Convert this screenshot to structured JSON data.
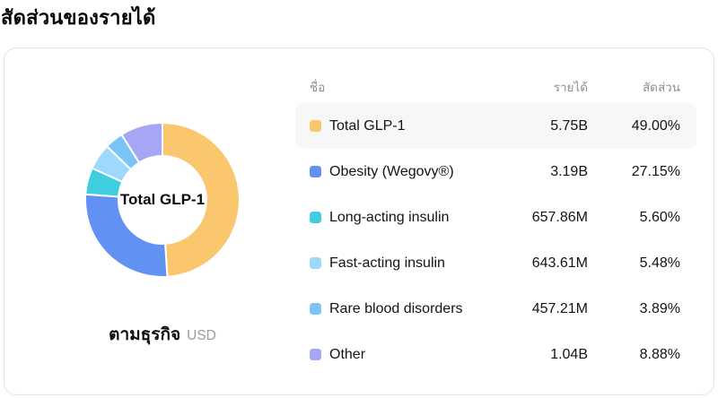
{
  "page_title": "สัดส่วนของรายได้",
  "card": {
    "donut": {
      "center_label": "Total GLP-1",
      "caption": "ตามธุรกิจ",
      "unit": "USD"
    },
    "table": {
      "headers": {
        "name": "ชื่อ",
        "revenue": "รายได้",
        "share": "สัดส่วน"
      },
      "rows": [
        {
          "name": "Total GLP-1",
          "revenue": "5.75B",
          "share": "49.00%",
          "color": "#FBC76E",
          "active": true
        },
        {
          "name": "Obesity (Wegovy®)",
          "revenue": "3.19B",
          "share": "27.15%",
          "color": "#6191F2",
          "active": false
        },
        {
          "name": "Long-acting insulin",
          "revenue": "657.86M",
          "share": "5.60%",
          "color": "#3FCEE0",
          "active": false
        },
        {
          "name": "Fast-acting insulin",
          "revenue": "643.61M",
          "share": "5.48%",
          "color": "#9ED8FB",
          "active": false
        },
        {
          "name": "Rare blood disorders",
          "revenue": "457.21M",
          "share": "3.89%",
          "color": "#7AC4F8",
          "active": false
        },
        {
          "name": "Other",
          "revenue": "1.04B",
          "share": "8.88%",
          "color": "#A5A6F6",
          "active": false
        }
      ]
    }
  },
  "chart_data": {
    "type": "pie",
    "subtype": "donut",
    "title": "สัดส่วนของรายได้",
    "caption": "ตามธุรกิจ",
    "unit": "USD",
    "center_label": "Total GLP-1",
    "start_angle_deg": 0,
    "direction": "clockwise",
    "segments": [
      {
        "name": "Total GLP-1",
        "value_label": "5.75B",
        "percent": 49.0,
        "color": "#FBC76E"
      },
      {
        "name": "Obesity (Wegovy®)",
        "value_label": "3.19B",
        "percent": 27.15,
        "color": "#6191F2"
      },
      {
        "name": "Long-acting insulin",
        "value_label": "657.86M",
        "percent": 5.6,
        "color": "#3FCEE0"
      },
      {
        "name": "Fast-acting insulin",
        "value_label": "643.61M",
        "percent": 5.48,
        "color": "#9ED8FB"
      },
      {
        "name": "Rare blood disorders",
        "value_label": "457.21M",
        "percent": 3.89,
        "color": "#7AC4F8"
      },
      {
        "name": "Other",
        "value_label": "1.04B",
        "percent": 8.88,
        "color": "#A5A6F6"
      }
    ]
  }
}
